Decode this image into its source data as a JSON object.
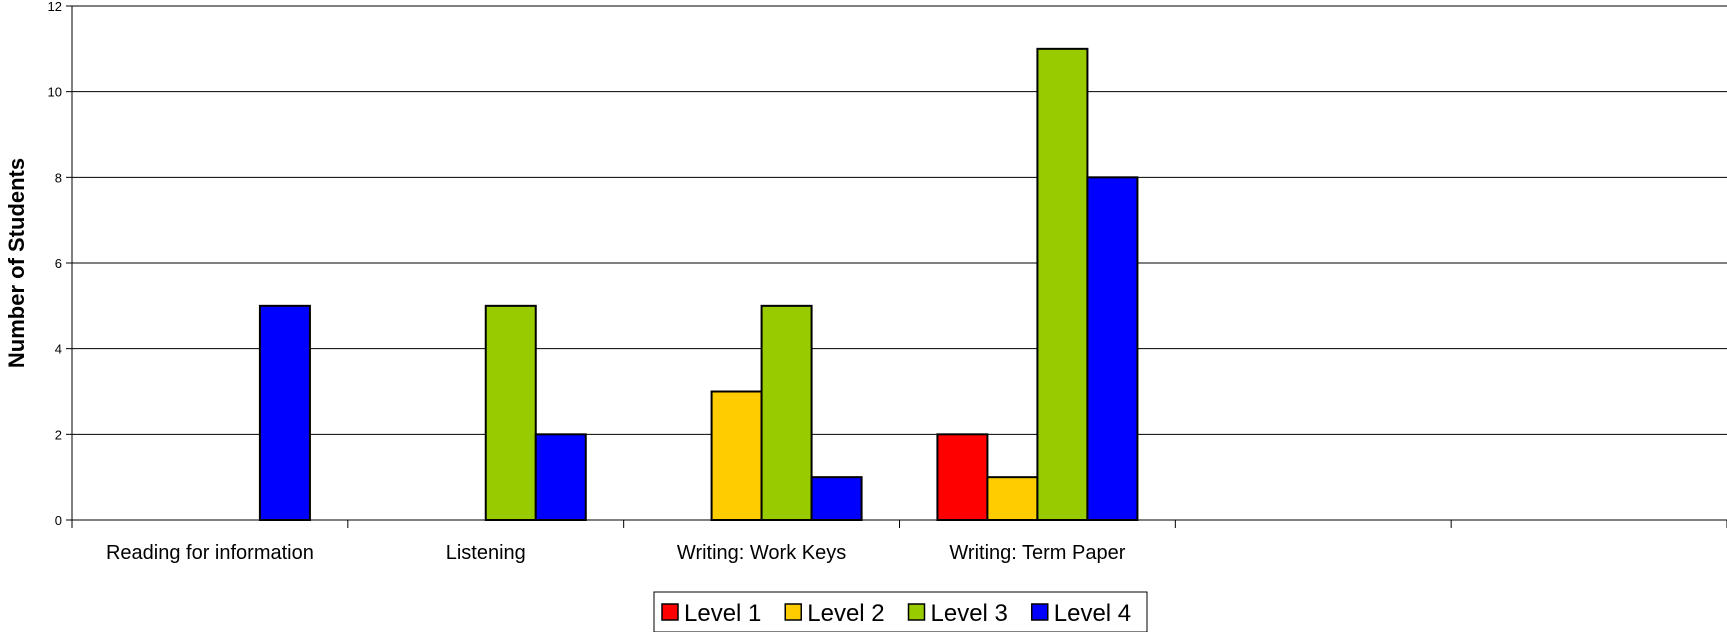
{
  "chart_data": {
    "type": "bar",
    "title": "",
    "xlabel": "",
    "ylabel": "Number of Students",
    "ylim": [
      0,
      12
    ],
    "yticks": [
      0,
      2,
      4,
      6,
      8,
      10,
      12
    ],
    "grid": true,
    "legend_position": "bottom",
    "categories": [
      "Reading for information",
      "Listening",
      "Writing: Work Keys",
      "Writing: Term Paper",
      "",
      ""
    ],
    "series": [
      {
        "name": "Level 1",
        "color": "#ff0000",
        "values": [
          0,
          0,
          0,
          2,
          0,
          0
        ]
      },
      {
        "name": "Level 2",
        "color": "#ffcc00",
        "values": [
          0,
          0,
          3,
          1,
          0,
          0
        ]
      },
      {
        "name": "Level 3",
        "color": "#99cc00",
        "values": [
          0,
          5,
          5,
          11,
          0,
          0
        ]
      },
      {
        "name": "Level 4",
        "color": "#0000ff",
        "values": [
          5,
          2,
          1,
          8,
          0,
          0
        ]
      }
    ]
  }
}
